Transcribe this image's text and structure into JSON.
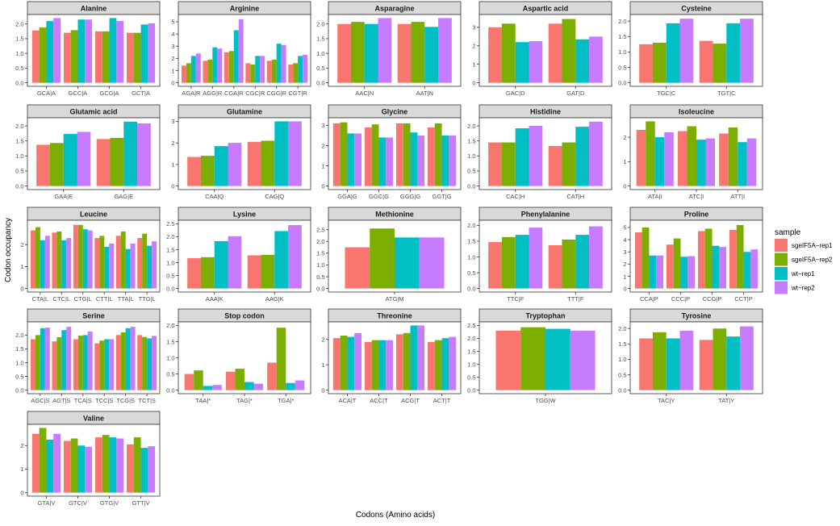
{
  "chart_data": {
    "type": "bar",
    "xlabel": "Codons (Amino acids)",
    "ylabel": "Codon occupancy",
    "legend": {
      "title": "sample",
      "placement": "right"
    },
    "series": [
      {
        "name": "sgeIF5A−rep1",
        "color": "#F8766D"
      },
      {
        "name": "sgeIF5A−rep2",
        "color": "#7CAE00"
      },
      {
        "name": "wt−rep1",
        "color": "#00BFC4"
      },
      {
        "name": "wt−rep2",
        "color": "#C77CFF"
      }
    ],
    "facets": [
      {
        "title": "Alanine",
        "ymax": 2.2,
        "ticks": [
          "0.0",
          "0.5",
          "1.0",
          "1.5",
          "2.0"
        ],
        "categories": [
          "GCA|A",
          "GCC|A",
          "GCG|A",
          "GCT|A"
        ],
        "values": [
          [
            1.78,
            1.88,
            2.1,
            2.2
          ],
          [
            1.7,
            1.79,
            2.15,
            2.15
          ],
          [
            1.75,
            1.75,
            2.2,
            2.1
          ],
          [
            1.7,
            1.7,
            1.98,
            2.02
          ]
        ]
      },
      {
        "title": "Arginine",
        "ymax": 5.3,
        "ticks": [
          "0",
          "1",
          "2",
          "3",
          "4",
          "5"
        ],
        "categories": [
          "AGA|R",
          "AGG|R",
          "CGA|R",
          "CGC|R",
          "CGG|R",
          "CGT|R"
        ],
        "values": [
          [
            1.4,
            1.6,
            2.2,
            2.4
          ],
          [
            1.8,
            1.9,
            2.9,
            2.8
          ],
          [
            2.5,
            2.6,
            4.3,
            5.2
          ],
          [
            1.6,
            1.5,
            2.2,
            2.2
          ],
          [
            1.8,
            1.9,
            3.2,
            3.1
          ],
          [
            1.5,
            1.6,
            2.2,
            2.3
          ]
        ]
      },
      {
        "title": "Asparagine",
        "ymax": 2.2,
        "ticks": [
          "0.0",
          "0.5",
          "1.0",
          "1.5",
          "2.0"
        ],
        "categories": [
          "AAC|N",
          "AAT|N"
        ],
        "values": [
          [
            2.0,
            2.07,
            2.0,
            2.2
          ],
          [
            2.0,
            2.07,
            1.9,
            2.2
          ]
        ]
      },
      {
        "title": "Aspartic acid",
        "ymax": 3.5,
        "ticks": [
          "0",
          "1",
          "2",
          "3"
        ],
        "categories": [
          "GAC|D",
          "GAT|D"
        ],
        "values": [
          [
            3.0,
            3.2,
            2.2,
            2.25
          ],
          [
            3.2,
            3.45,
            2.35,
            2.5
          ]
        ]
      },
      {
        "title": "Cysteine",
        "ymax": 2.1,
        "ticks": [
          "0.0",
          "0.5",
          "1.0",
          "1.5",
          "2.0"
        ],
        "categories": [
          "TGC|C",
          "TGT|C"
        ],
        "values": [
          [
            1.25,
            1.3,
            1.93,
            2.08
          ],
          [
            1.36,
            1.27,
            1.93,
            2.08
          ]
        ]
      },
      {
        "title": "Glutamic acid",
        "ymax": 2.15,
        "ticks": [
          "0.0",
          "0.5",
          "1.0",
          "1.5",
          "2.0"
        ],
        "categories": [
          "GAA|E",
          "GAG|E"
        ],
        "values": [
          [
            1.37,
            1.43,
            1.73,
            1.8
          ],
          [
            1.56,
            1.6,
            2.14,
            2.08
          ]
        ]
      },
      {
        "title": "Glutamine",
        "ymax": 3.0,
        "ticks": [
          "0",
          "1",
          "2",
          "3"
        ],
        "categories": [
          "CAA|Q",
          "CAG|Q"
        ],
        "values": [
          [
            1.35,
            1.4,
            1.85,
            2.0
          ],
          [
            2.05,
            2.1,
            3.0,
            3.0
          ]
        ]
      },
      {
        "title": "Glycine",
        "ymax": 3.2,
        "ticks": [
          "0",
          "1",
          "2",
          "3"
        ],
        "categories": [
          "GGA|G",
          "GGC|G",
          "GGG|G",
          "GGT|G"
        ],
        "values": [
          [
            3.1,
            3.15,
            2.6,
            2.6
          ],
          [
            2.9,
            3.05,
            2.4,
            2.4
          ],
          [
            3.1,
            3.1,
            2.65,
            2.5
          ],
          [
            2.9,
            3.1,
            2.5,
            2.5
          ]
        ]
      },
      {
        "title": "Histidine",
        "ymax": 2.15,
        "ticks": [
          "0.0",
          "0.5",
          "1.0",
          "1.5",
          "2.0"
        ],
        "categories": [
          "CAC|H",
          "CAT|H"
        ],
        "values": [
          [
            1.45,
            1.45,
            1.92,
            2.0
          ],
          [
            1.33,
            1.45,
            1.97,
            2.14
          ]
        ]
      },
      {
        "title": "Isoleucine",
        "ymax": 2.65,
        "ticks": [
          "0",
          "1",
          "2"
        ],
        "categories": [
          "ATA|I",
          "ATC|I",
          "ATT|I"
        ],
        "values": [
          [
            2.3,
            2.65,
            2.0,
            2.2
          ],
          [
            2.25,
            2.45,
            1.9,
            1.95
          ],
          [
            2.15,
            2.4,
            1.8,
            1.95
          ]
        ]
      },
      {
        "title": "Leucine",
        "ymax": 2.95,
        "ticks": [
          "0",
          "1",
          "2"
        ],
        "categories": [
          "CTA|L",
          "CTC|L",
          "CTG|L",
          "CTT|L",
          "TTA|L",
          "TTG|L"
        ],
        "values": [
          [
            2.65,
            2.8,
            2.2,
            2.4
          ],
          [
            2.55,
            2.6,
            2.2,
            2.3
          ],
          [
            2.9,
            2.9,
            2.7,
            2.65
          ],
          [
            2.3,
            2.4,
            1.9,
            2.05
          ],
          [
            2.4,
            2.6,
            1.8,
            2.05
          ],
          [
            2.3,
            2.5,
            1.95,
            2.15
          ]
        ]
      },
      {
        "title": "Lysine",
        "ymax": 2.5,
        "ticks": [
          "0.0",
          "0.5",
          "1.0",
          "1.5",
          "2.0",
          "2.5"
        ],
        "categories": [
          "AAA|K",
          "AAG|K"
        ],
        "values": [
          [
            1.17,
            1.21,
            1.83,
            2.02
          ],
          [
            1.28,
            1.3,
            2.22,
            2.45
          ]
        ]
      },
      {
        "title": "Methionine",
        "ymax": 2.75,
        "ticks": [
          "0.0",
          "0.5",
          "1.0",
          "1.5",
          "2.0",
          "2.5"
        ],
        "categories": [
          "ATG|M"
        ],
        "values": [
          [
            1.75,
            2.55,
            2.17,
            2.17
          ]
        ]
      },
      {
        "title": "Phenylalanine",
        "ymax": 2.05,
        "ticks": [
          "0.0",
          "0.5",
          "1.0",
          "1.5",
          "2.0"
        ],
        "categories": [
          "TTC|F",
          "TTT|F"
        ],
        "values": [
          [
            1.47,
            1.63,
            1.7,
            1.93
          ],
          [
            1.37,
            1.55,
            1.7,
            1.97
          ]
        ]
      },
      {
        "title": "Proline",
        "ymax": 5.3,
        "ticks": [
          "0",
          "1",
          "2",
          "3",
          "4",
          "5"
        ],
        "categories": [
          "CCA|P",
          "CCC|P",
          "CCG|P",
          "CCT|P"
        ],
        "values": [
          [
            4.6,
            5.0,
            2.7,
            2.7
          ],
          [
            3.6,
            4.1,
            2.6,
            2.65
          ],
          [
            4.7,
            4.9,
            3.5,
            3.4
          ],
          [
            4.8,
            5.2,
            3.0,
            3.2
          ]
        ]
      },
      {
        "title": "Serine",
        "ymax": 2.35,
        "ticks": [
          "0.0",
          "0.5",
          "1.0",
          "1.5",
          "2.0"
        ],
        "categories": [
          "AGC|S",
          "AGT|S",
          "TCA|S",
          "TCC|S",
          "TCG|S",
          "TCT|S"
        ],
        "values": [
          [
            1.85,
            2.0,
            2.25,
            2.27
          ],
          [
            1.77,
            1.92,
            2.18,
            2.3
          ],
          [
            1.85,
            1.98,
            2.0,
            2.13
          ],
          [
            1.7,
            1.8,
            1.85,
            1.85
          ],
          [
            2.0,
            2.1,
            2.25,
            2.3
          ],
          [
            2.0,
            1.93,
            1.88,
            1.97
          ]
        ]
      },
      {
        "title": "Stop codon",
        "ymax": 2.0,
        "ticks": [
          "0.0",
          "0.5",
          "1.0",
          "1.5",
          "2.0"
        ],
        "categories": [
          "TAA|*",
          "TAG|*",
          "TGA|*"
        ],
        "values": [
          [
            0.5,
            0.61,
            0.13,
            0.16
          ],
          [
            0.57,
            0.66,
            0.25,
            0.2
          ],
          [
            0.85,
            1.93,
            0.22,
            0.3
          ]
        ]
      },
      {
        "title": "Threonine",
        "ymax": 2.55,
        "ticks": [
          "0",
          "1",
          "2"
        ],
        "categories": [
          "ACA|T",
          "ACC|T",
          "ACG|T",
          "ACT|T"
        ],
        "values": [
          [
            2.05,
            2.15,
            2.1,
            2.25
          ],
          [
            1.9,
            1.97,
            1.97,
            1.97
          ],
          [
            2.2,
            2.25,
            2.55,
            2.55
          ],
          [
            1.9,
            1.97,
            2.05,
            2.1
          ]
        ]
      },
      {
        "title": "Tryptophan",
        "ymax": 2.5,
        "ticks": [
          "0.0",
          "0.5",
          "1.0",
          "1.5",
          "2.0",
          "2.5"
        ],
        "categories": [
          "TGG|W"
        ],
        "values": [
          [
            2.3,
            2.43,
            2.37,
            2.3
          ]
        ]
      },
      {
        "title": "Tyrosine",
        "ymax": 2.1,
        "ticks": [
          "0.0",
          "0.5",
          "1.0",
          "1.5",
          "2.0"
        ],
        "categories": [
          "TAC|Y",
          "TAT|Y"
        ],
        "values": [
          [
            1.68,
            1.88,
            1.68,
            1.93
          ],
          [
            1.63,
            2.0,
            1.74,
            2.07
          ]
        ]
      },
      {
        "title": "Valine",
        "ymax": 2.75,
        "ticks": [
          "0",
          "1",
          "2"
        ],
        "categories": [
          "GTA|V",
          "GTC|V",
          "GTG|V",
          "GTT|V"
        ],
        "values": [
          [
            2.5,
            2.75,
            2.25,
            2.5
          ],
          [
            2.2,
            2.3,
            2.0,
            1.95
          ],
          [
            2.35,
            2.45,
            2.35,
            2.3
          ],
          [
            2.05,
            2.35,
            1.9,
            1.97
          ]
        ]
      }
    ]
  }
}
